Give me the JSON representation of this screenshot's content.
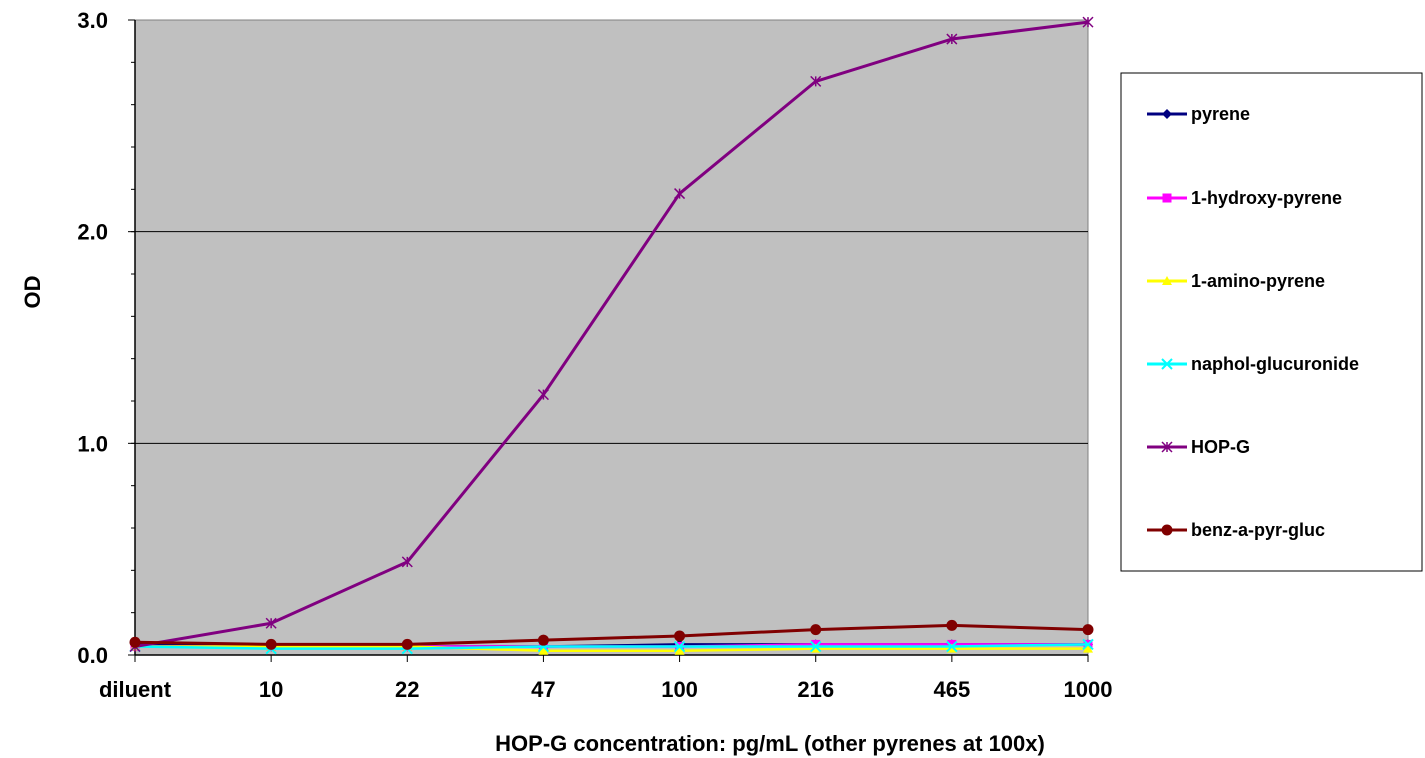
{
  "chart_data": {
    "type": "line",
    "categories": [
      "diluent",
      "10",
      "22",
      "47",
      "100",
      "216",
      "465",
      "1000"
    ],
    "xlabel": "HOP-G concentration: pg/mL (other pyrenes at 100x)",
    "ylabel": "OD",
    "ylim": [
      0,
      3.0
    ],
    "yticks": [
      "0.0",
      "1.0",
      "2.0",
      "3.0"
    ],
    "y_minor_tick_step": 0.2,
    "grid": "horizontal major",
    "plot_background": "#c0c0c0",
    "legend_position": "right",
    "series": [
      {
        "name": "pyrene",
        "color": "#000080",
        "marker": "diamond",
        "values": [
          0.05,
          0.04,
          0.04,
          0.04,
          0.05,
          0.05,
          0.05,
          0.05
        ]
      },
      {
        "name": "1-hydroxy-pyrene",
        "color": "#ff00ff",
        "marker": "square",
        "values": [
          0.04,
          0.04,
          0.04,
          0.04,
          0.04,
          0.05,
          0.05,
          0.05
        ]
      },
      {
        "name": "1-amino-pyrene",
        "color": "#ffff00",
        "marker": "triangle",
        "values": [
          0.04,
          0.04,
          0.04,
          0.02,
          0.02,
          0.03,
          0.03,
          0.03
        ]
      },
      {
        "name": "naphol-glucuronide",
        "color": "#00ffff",
        "marker": "x",
        "values": [
          0.04,
          0.03,
          0.03,
          0.04,
          0.04,
          0.04,
          0.04,
          0.05
        ]
      },
      {
        "name": "HOP-G",
        "color": "#800080",
        "marker": "star",
        "values": [
          0.04,
          0.15,
          0.44,
          1.23,
          2.18,
          2.71,
          2.91,
          2.99
        ]
      },
      {
        "name": "benz-a-pyr-gluc",
        "color": "#800000",
        "marker": "circle",
        "values": [
          0.06,
          0.05,
          0.05,
          0.07,
          0.09,
          0.12,
          0.14,
          0.12
        ]
      }
    ]
  }
}
